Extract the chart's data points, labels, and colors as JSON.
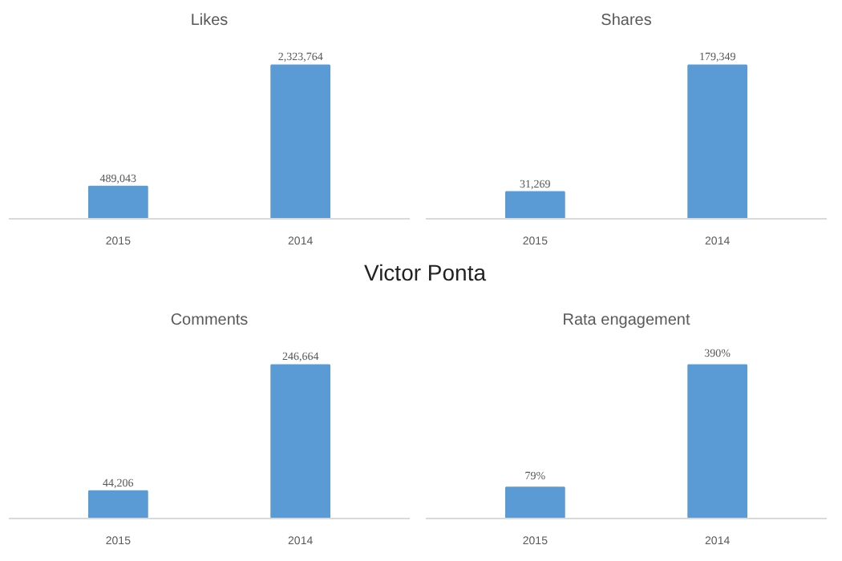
{
  "chart_data": [
    {
      "type": "bar",
      "title": "Likes",
      "categories": [
        "2015",
        "2014"
      ],
      "values": [
        489043,
        2323764
      ],
      "color": "#5b9bd5",
      "value_labels": [
        "489,043",
        "2,323,764"
      ],
      "grid": false
    },
    {
      "type": "bar",
      "title": "Shares",
      "categories": [
        "2015",
        "2014"
      ],
      "values": [
        31269,
        179349
      ],
      "color": "#5b9bd5",
      "value_labels": [
        "31,269",
        "179,349"
      ],
      "grid": false
    },
    {
      "type": "other",
      "title": "Victor Ponta"
    },
    {
      "type": "bar",
      "title": "Comments",
      "categories": [
        "2015",
        "2014"
      ],
      "values": [
        44206,
        246664
      ],
      "color": "#5b9bd5",
      "value_labels": [
        "44,206",
        "246,664"
      ],
      "grid": false
    },
    {
      "type": "bar",
      "title": "Rata engagement",
      "categories": [
        "2015",
        "2014"
      ],
      "values": [
        79,
        390
      ],
      "color": "#5b9bd5",
      "value_labels": [
        "79%",
        "390%"
      ],
      "grid": false
    }
  ]
}
